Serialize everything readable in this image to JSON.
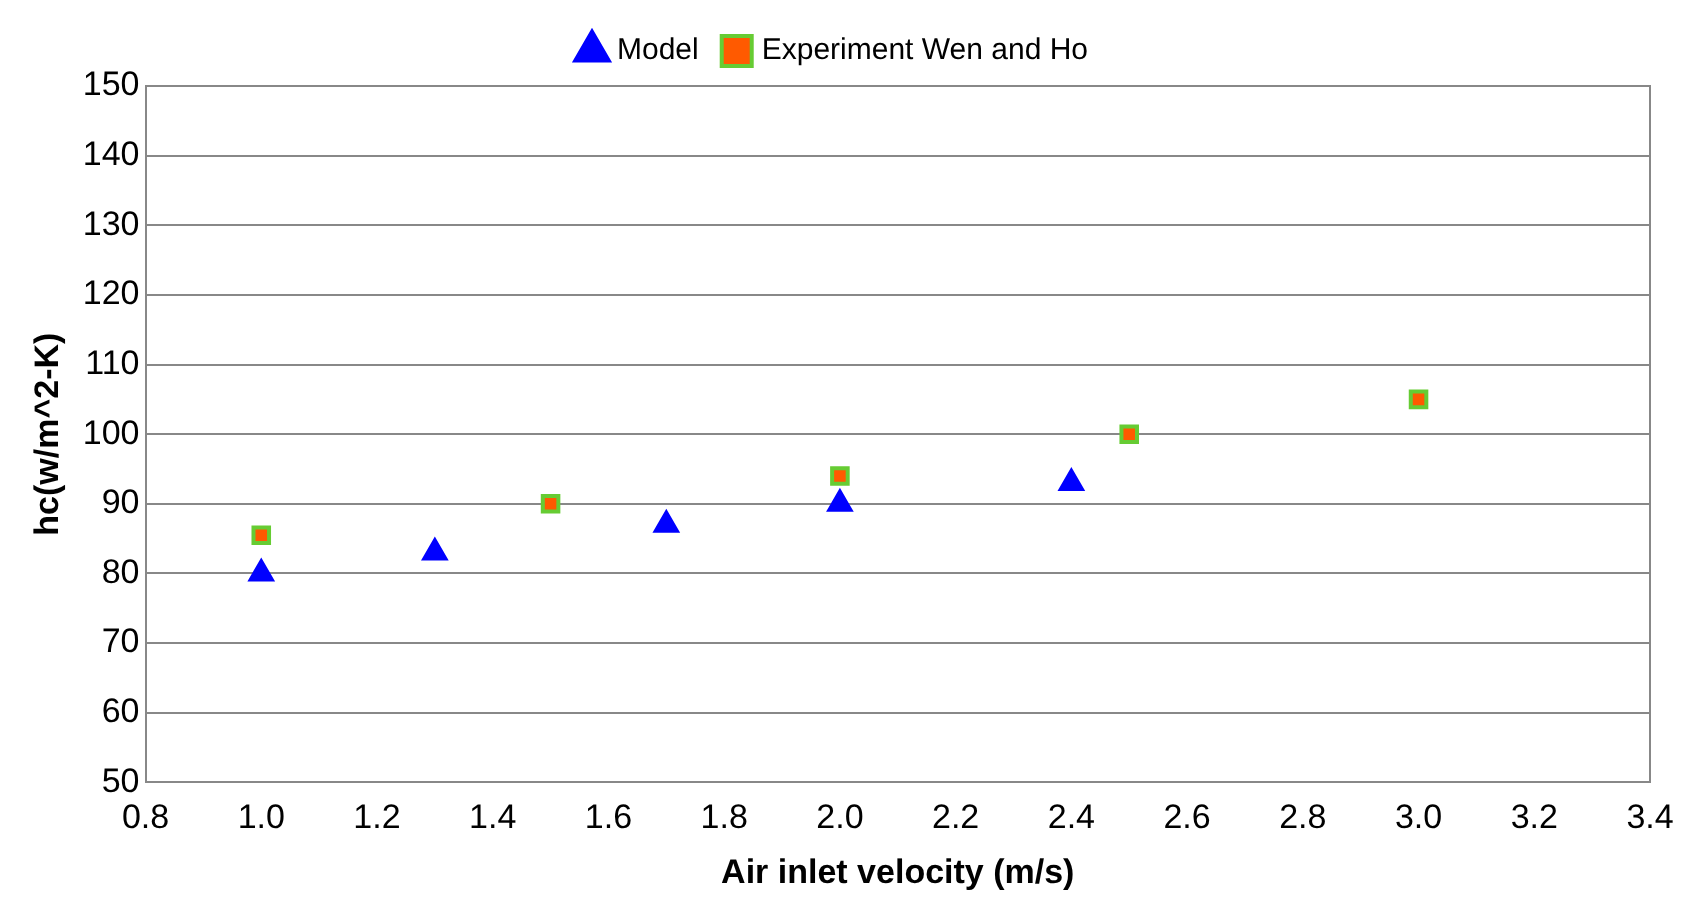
{
  "chart_data": {
    "type": "scatter",
    "xlabel": "Air inlet velocity (m/s)",
    "ylabel": "hc(w/m^2-K)",
    "xlim": [
      0.8,
      3.4
    ],
    "xticks": [
      {
        "value": 0.8,
        "label": "0.8"
      },
      {
        "value": 1.0,
        "label": "1.0"
      },
      {
        "value": 1.2,
        "label": "1.2"
      },
      {
        "value": 1.4,
        "label": "1.4"
      },
      {
        "value": 1.6,
        "label": "1.6"
      },
      {
        "value": 1.8,
        "label": "1.8"
      },
      {
        "value": 2.0,
        "label": "2.0"
      },
      {
        "value": 2.2,
        "label": "2.2"
      },
      {
        "value": 2.4,
        "label": "2.4"
      },
      {
        "value": 2.6,
        "label": "2.6"
      },
      {
        "value": 2.8,
        "label": "2.8"
      },
      {
        "value": 3.0,
        "label": "3.0"
      },
      {
        "value": 3.2,
        "label": "3.2"
      },
      {
        "value": 3.4,
        "label": "3.4"
      }
    ],
    "ylim": [
      50,
      150
    ],
    "yticks": [
      50,
      60,
      70,
      80,
      90,
      100,
      110,
      120,
      130,
      140,
      150
    ],
    "grid": "y",
    "legend": "top",
    "series": [
      {
        "name": "Model",
        "color": "#0000ff",
        "marker": "triangle",
        "x": [
          1.0,
          1.3,
          1.7,
          2.0,
          2.4
        ],
        "values": [
          80,
          83,
          87,
          90,
          93
        ]
      },
      {
        "name": "Experiment Wen and Ho",
        "color": "#ff5a00",
        "marker": "square",
        "x": [
          1.0,
          1.5,
          2.0,
          2.5,
          3.0
        ],
        "values": [
          85.5,
          90,
          94,
          100,
          105
        ]
      }
    ]
  }
}
